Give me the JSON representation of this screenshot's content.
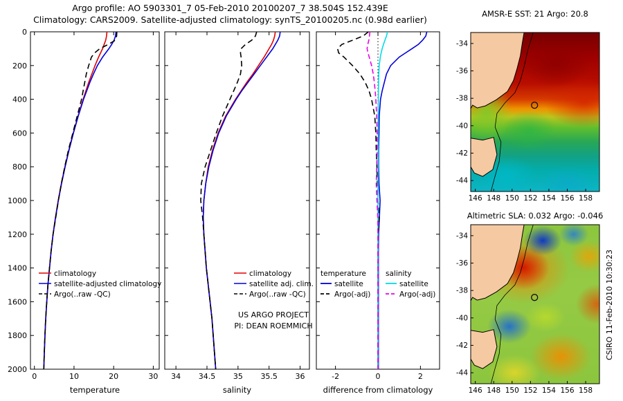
{
  "title": {
    "line1": "Argo profile: AO 5903301_7 05-Feb-2010 20100207_7 38.504S 152.439E",
    "line2": "Climatology: CARS2009. Satellite-adjusted climatology: synTS_20100205.nc (0.98d earlier)"
  },
  "stamp": "CSIRO 11-Feb-2010 10:30:23",
  "colors": {
    "red": "#e00000",
    "blue": "#0000d9",
    "black": "#000000",
    "cyan": "#00dde8",
    "magenta": "#e800e8",
    "land": "#f5c9a1"
  },
  "chart_data": [
    {
      "id": "temperature-profile",
      "type": "line",
      "xlabel": "temperature",
      "xlim": [
        -1,
        31.5
      ],
      "xticks": [
        0,
        10,
        20,
        30
      ],
      "ylim": [
        0,
        2000
      ],
      "yticks": [
        0,
        200,
        400,
        600,
        800,
        1000,
        1200,
        1400,
        1600,
        1800,
        2000
      ],
      "y_tick_labels": true,
      "depths": [
        0,
        25,
        50,
        75,
        100,
        125,
        150,
        200,
        250,
        300,
        350,
        400,
        500,
        600,
        700,
        800,
        900,
        1000,
        1100,
        1200,
        1300,
        1400,
        1500,
        1600,
        1700,
        1800,
        1900,
        2000
      ],
      "series": [
        {
          "name": "climatology",
          "color": "red",
          "values": [
            18.3,
            18.2,
            18.0,
            17.6,
            17.2,
            16.7,
            16.2,
            15.3,
            14.5,
            13.7,
            13.0,
            12.3,
            11.0,
            9.8,
            8.7,
            7.7,
            6.8,
            6.0,
            5.3,
            4.7,
            4.2,
            3.8,
            3.4,
            3.1,
            2.85,
            2.65,
            2.5,
            2.35
          ]
        },
        {
          "name": "satellite-adjusted climatology",
          "color": "blue",
          "values": [
            20.6,
            20.45,
            20.1,
            19.5,
            18.8,
            18.0,
            17.2,
            15.9,
            14.9,
            14.0,
            13.2,
            12.4,
            11.05,
            9.85,
            8.75,
            7.75,
            6.85,
            6.05,
            5.35,
            4.72,
            4.22,
            3.82,
            3.42,
            3.12,
            2.87,
            2.67,
            2.52,
            2.37
          ]
        },
        {
          "name": "Argo(..raw -QC)",
          "color": "black",
          "dash": "8,5",
          "values": [
            20.8,
            20.75,
            20.4,
            18.6,
            16.5,
            15.2,
            14.4,
            13.7,
            13.1,
            12.7,
            12.3,
            11.9,
            10.8,
            9.7,
            8.6,
            7.65,
            6.8,
            6.05,
            5.4,
            4.72,
            4.2,
            3.8,
            3.4,
            3.1,
            2.85,
            2.66,
            2.5,
            2.35
          ]
        }
      ]
    },
    {
      "id": "salinity-profile",
      "type": "line",
      "xlabel": "salinity",
      "xlim": [
        33.82,
        36.15
      ],
      "xticks": [
        34,
        34.5,
        35,
        35.5,
        36
      ],
      "ylim": [
        0,
        2000
      ],
      "yticks": [
        0,
        200,
        400,
        600,
        800,
        1000,
        1200,
        1400,
        1600,
        1800,
        2000
      ],
      "y_tick_labels": false,
      "depths": [
        0,
        25,
        50,
        75,
        100,
        125,
        150,
        200,
        250,
        300,
        350,
        400,
        500,
        600,
        700,
        800,
        900,
        1000,
        1100,
        1200,
        1300,
        1400,
        1500,
        1600,
        1700,
        1800,
        1900,
        2000
      ],
      "series": [
        {
          "name": "climatology",
          "color": "red",
          "values": [
            35.6,
            35.59,
            35.57,
            35.54,
            35.5,
            35.46,
            35.42,
            35.33,
            35.24,
            35.14,
            35.05,
            34.96,
            34.8,
            34.68,
            34.59,
            34.52,
            34.48,
            34.45,
            34.44,
            34.45,
            34.47,
            34.49,
            34.52,
            34.55,
            34.58,
            34.6,
            34.62,
            34.64
          ]
        },
        {
          "name": "satellite adj. clim.",
          "color": "blue",
          "values": [
            35.68,
            35.67,
            35.64,
            35.6,
            35.56,
            35.51,
            35.46,
            35.36,
            35.26,
            35.16,
            35.06,
            34.97,
            34.81,
            34.69,
            34.6,
            34.53,
            34.48,
            34.45,
            34.44,
            34.45,
            34.47,
            34.49,
            34.52,
            34.55,
            34.58,
            34.6,
            34.62,
            34.64
          ]
        },
        {
          "name": "Argo(..raw -QC)",
          "color": "black",
          "dash": "8,5",
          "values": [
            35.3,
            35.28,
            35.22,
            35.12,
            35.05,
            35.04,
            35.05,
            35.06,
            35.04,
            34.99,
            34.93,
            34.87,
            34.75,
            34.65,
            34.56,
            34.47,
            34.41,
            34.4,
            34.43,
            34.45,
            34.47,
            34.49,
            34.52,
            34.55,
            34.58,
            34.6,
            34.62,
            34.64
          ]
        }
      ],
      "annotation": [
        "US ARGO PROJECT",
        "PI: DEAN ROEMMICH"
      ]
    },
    {
      "id": "difference-profile",
      "type": "line",
      "xlabel": "difference from climatology",
      "xlim": [
        -2.9,
        2.9
      ],
      "xticks": [
        -2,
        0,
        2
      ],
      "zeroline": true,
      "ylim": [
        0,
        2000
      ],
      "yticks": [
        0,
        200,
        400,
        600,
        800,
        1000,
        1200,
        1400,
        1600,
        1800,
        2000
      ],
      "y_tick_labels": false,
      "depths": [
        0,
        25,
        50,
        75,
        100,
        125,
        150,
        200,
        250,
        300,
        350,
        400,
        500,
        600,
        700,
        800,
        900,
        1000,
        1100,
        1200,
        1300,
        1400,
        1500,
        1600,
        1700,
        1800,
        1900,
        2000
      ],
      "legend_groups": [
        "temperature",
        "salinity"
      ],
      "series": [
        {
          "name": "satellite",
          "group": "temperature",
          "color": "blue",
          "values": [
            2.3,
            2.25,
            2.1,
            1.9,
            1.6,
            1.3,
            1.0,
            0.6,
            0.4,
            0.3,
            0.2,
            0.12,
            0.06,
            0.05,
            0.03,
            0.03,
            0.05,
            0.1,
            0.07,
            0.03,
            0.02,
            0.02,
            0.02,
            0.02,
            0.02,
            0.02,
            0.02,
            0.02
          ]
        },
        {
          "name": "Argo(-adj)",
          "group": "temperature",
          "color": "black",
          "dash": "8,5",
          "values": [
            -0.45,
            -0.7,
            -1.2,
            -1.7,
            -1.9,
            -1.85,
            -1.6,
            -1.2,
            -0.85,
            -0.6,
            -0.42,
            -0.3,
            -0.15,
            -0.1,
            -0.08,
            -0.05,
            -0.03,
            0.0,
            0.06,
            0.02,
            0.0,
            0.0,
            0.0,
            0.0,
            0.0,
            0.0,
            0.0,
            0.0
          ]
        },
        {
          "name": "satellite",
          "group": "salinity",
          "color": "cyan",
          "values": [
            0.45,
            0.4,
            0.33,
            0.26,
            0.2,
            0.15,
            0.11,
            0.06,
            0.04,
            0.03,
            0.02,
            0.02,
            0.01,
            0.01,
            0.01,
            0.01,
            0.0,
            0.0,
            0.0,
            0.0,
            0.0,
            0.0,
            0.0,
            0.0,
            0.0,
            0.0,
            0.0,
            0.0
          ]
        },
        {
          "name": "Argo(-adj)",
          "group": "salinity",
          "color": "magenta",
          "dash": "7,4",
          "values": [
            -0.38,
            -0.4,
            -0.43,
            -0.48,
            -0.51,
            -0.47,
            -0.41,
            -0.3,
            -0.22,
            -0.17,
            -0.13,
            -0.1,
            -0.06,
            -0.04,
            -0.04,
            -0.06,
            -0.08,
            -0.05,
            -0.01,
            0.0,
            0.0,
            0.0,
            0.0,
            0.0,
            0.0,
            0.0,
            0.0,
            0.0
          ]
        }
      ]
    }
  ],
  "maps": [
    {
      "id": "sst",
      "title": "AMSR-E SST: 21 Argo: 20.8",
      "xticks": [
        146,
        148,
        150,
        152,
        154,
        156,
        158
      ],
      "yticks": [
        -34,
        -36,
        -38,
        -40,
        -42,
        -44
      ],
      "lon_range": [
        145.5,
        159.5
      ],
      "lat_range": [
        -33.2,
        -44.8
      ],
      "marker": {
        "lon": 152.439,
        "lat": -38.504
      }
    },
    {
      "id": "sla",
      "title": "Altimetric SLA: 0.032 Argo: -0.046",
      "xticks": [
        146,
        148,
        150,
        152,
        154,
        156,
        158
      ],
      "yticks": [
        -34,
        -36,
        -38,
        -40,
        -42,
        -44
      ],
      "lon_range": [
        145.5,
        159.5
      ],
      "lat_range": [
        -33.2,
        -44.8
      ],
      "marker": {
        "lon": 152.439,
        "lat": -38.504
      }
    }
  ]
}
